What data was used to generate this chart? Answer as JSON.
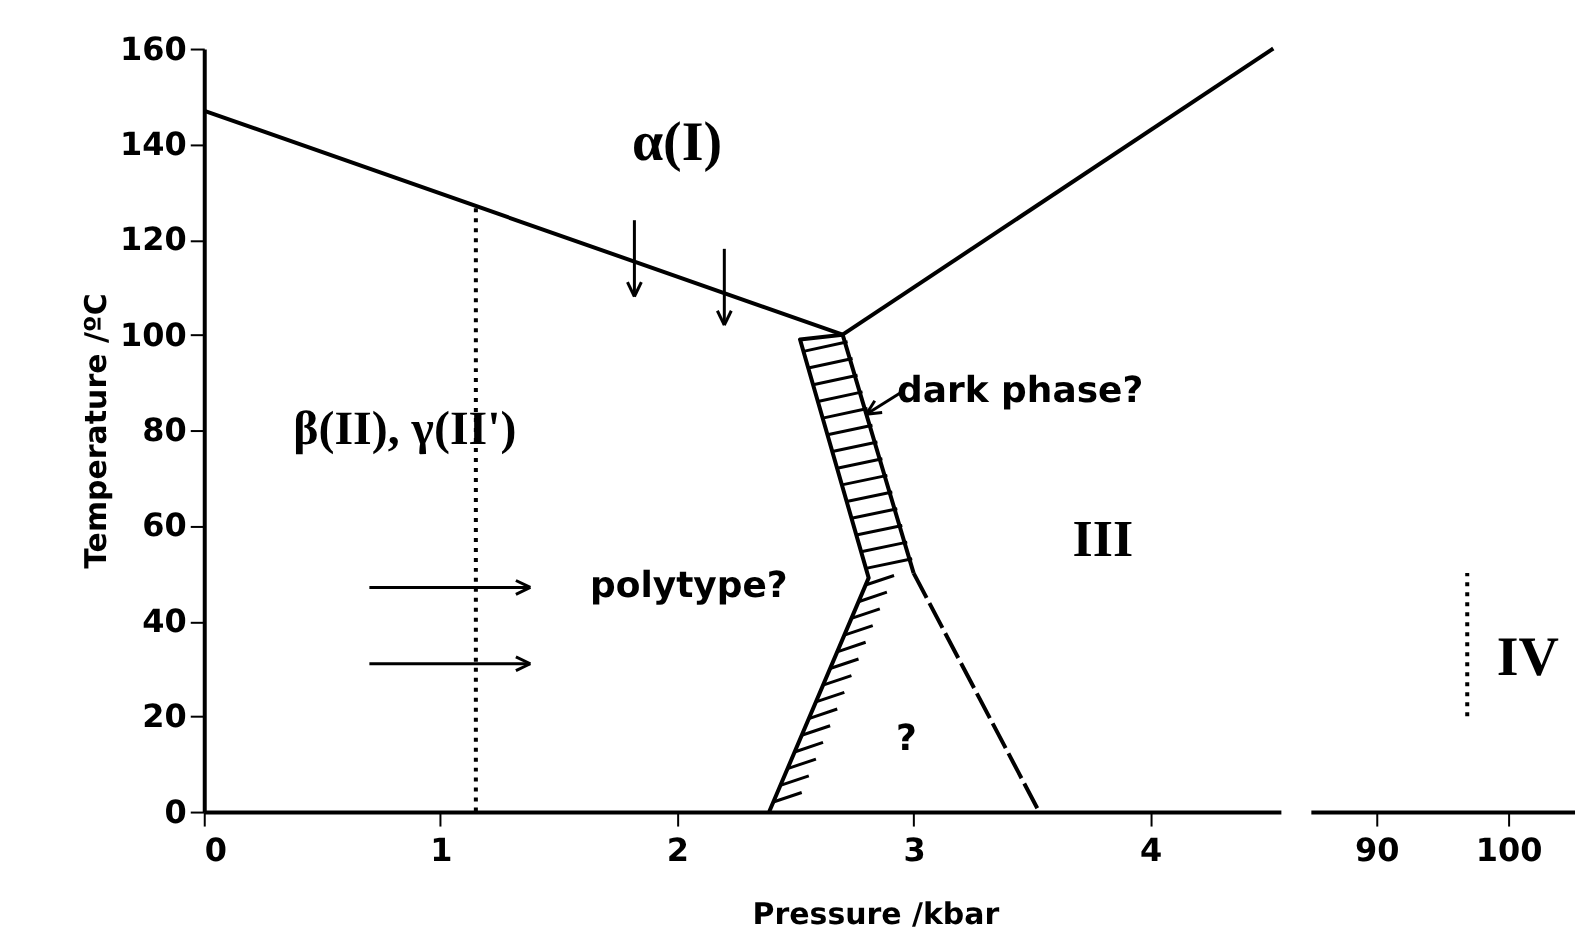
{
  "chart_data": [
    {
      "type": "line",
      "xlabel": "Pressure /kbar",
      "ylabel": "Temperature /ºC",
      "xlim": [
        0,
        4.55
      ],
      "xticks": [
        0,
        1,
        2,
        3,
        4
      ],
      "ylim": [
        0,
        160
      ],
      "yticks": [
        0,
        20,
        40,
        60,
        80,
        100,
        120,
        140,
        160
      ],
      "grid": false,
      "tick_labels": "xy",
      "series": [
        {
          "color": "#000000",
          "x": [
            0,
            2.7,
            3.0
          ],
          "values": [
            147,
            100,
            50
          ],
          "line_style": "solid"
        },
        {
          "color": "#000000",
          "x": [
            2.7,
            4.52
          ],
          "values": [
            100,
            160
          ],
          "line_style": "solid"
        },
        {
          "color": "#000000",
          "x": [
            3.0,
            3.53
          ],
          "values": [
            50,
            0
          ],
          "line_style": "dashed"
        },
        {
          "color": "#000000",
          "x": [
            1.15,
            1.15
          ],
          "values": [
            0,
            127
          ],
          "line_style": "dotted"
        },
        {
          "color": "#000000",
          "x": [
            2.39,
            2.81,
            2.52,
            2.7
          ],
          "values": [
            0,
            49,
            99,
            100
          ],
          "line_style": "solid"
        }
      ],
      "annotations": [
        "α(I)",
        "β(II), γ(II')",
        "polytype?",
        {
          "text": "dark phase?",
          "x": 2.8,
          "y": 83.3
        },
        "III",
        "?"
      ]
    },
    {
      "type": "line",
      "xlim": [
        85,
        105
      ],
      "xticks": [
        90,
        100
      ],
      "ylim": [
        0,
        160
      ],
      "grid": false,
      "tick_labels": "x",
      "series": [
        {
          "color": "#000000",
          "x": [
            96.9,
            96.9
          ],
          "values": [
            20,
            50
          ],
          "line_style": "dotted"
        }
      ],
      "annotations": [
        "IV"
      ]
    }
  ]
}
